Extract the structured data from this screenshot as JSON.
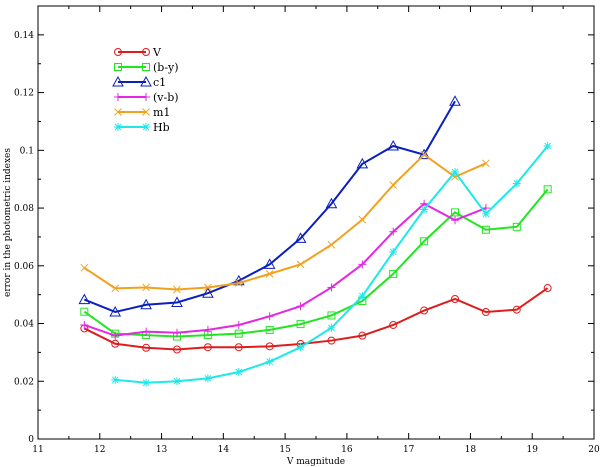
{
  "chart_data": {
    "type": "line",
    "xlabel": "V magnitude",
    "ylabel": "error in the photometric indexes",
    "xlim": [
      11,
      20
    ],
    "ylim": [
      0,
      0.15
    ],
    "xticks": [
      "11",
      "12",
      "13",
      "14",
      "15",
      "16",
      "17",
      "18",
      "19",
      "20"
    ],
    "yticks": [
      "0",
      "0.02",
      "0.04",
      "0.06",
      "0.08",
      "0.1",
      "0.12",
      "0.14"
    ],
    "grid": false,
    "legend_position": "top-left",
    "series": [
      {
        "name": "V",
        "color": "#dd1c1c",
        "marker": "circle",
        "x": [
          11.75,
          12.25,
          12.75,
          13.25,
          13.75,
          14.25,
          14.75,
          15.25,
          15.75,
          16.25,
          16.75,
          17.25,
          17.75,
          18.25,
          18.75,
          19.25
        ],
        "y": [
          0.0383,
          0.033,
          0.0316,
          0.031,
          0.0318,
          0.0318,
          0.0321,
          0.0329,
          0.0341,
          0.0358,
          0.0395,
          0.0445,
          0.0485,
          0.044,
          0.0448,
          0.0523
        ]
      },
      {
        "name": "(b-y)",
        "color": "#22e522",
        "marker": "square",
        "x": [
          11.75,
          12.25,
          12.75,
          13.25,
          13.75,
          14.25,
          14.75,
          15.25,
          15.75,
          16.25,
          16.75,
          17.25,
          17.75,
          18.25,
          18.75,
          19.25
        ],
        "y": [
          0.0441,
          0.0365,
          0.036,
          0.0355,
          0.036,
          0.0365,
          0.0378,
          0.0398,
          0.0428,
          0.0478,
          0.0572,
          0.0685,
          0.0785,
          0.0725,
          0.0735,
          0.0865
        ]
      },
      {
        "name": "c1",
        "color": "#0a1fbd",
        "marker": "triangle",
        "x": [
          11.75,
          12.25,
          12.75,
          13.25,
          13.75,
          14.25,
          14.75,
          15.25,
          15.75,
          16.25,
          16.75,
          17.25,
          17.75
        ],
        "y": [
          0.0483,
          0.044,
          0.0465,
          0.0473,
          0.0505,
          0.0548,
          0.0605,
          0.0695,
          0.0815,
          0.0953,
          0.1015,
          0.0985,
          0.117
        ]
      },
      {
        "name": "(v-b)",
        "color": "#e327e3",
        "marker": "plus",
        "x": [
          11.75,
          12.25,
          12.75,
          13.25,
          13.75,
          14.25,
          14.75,
          15.25,
          15.75,
          16.25,
          16.75,
          17.25,
          17.75,
          18.25
        ],
        "y": [
          0.0395,
          0.0358,
          0.0372,
          0.0368,
          0.0378,
          0.0395,
          0.0425,
          0.046,
          0.0525,
          0.0605,
          0.0718,
          0.0815,
          0.0758,
          0.08
        ]
      },
      {
        "name": "m1",
        "color": "#f2a11e",
        "marker": "x",
        "x": [
          11.75,
          12.25,
          12.75,
          13.25,
          13.75,
          14.25,
          14.75,
          15.25,
          15.75,
          16.25,
          16.75,
          17.25,
          17.75,
          18.25
        ],
        "y": [
          0.0593,
          0.0522,
          0.0525,
          0.0518,
          0.0525,
          0.054,
          0.0572,
          0.0605,
          0.0673,
          0.076,
          0.088,
          0.0985,
          0.0908,
          0.0955
        ]
      },
      {
        "name": "Hb",
        "color": "#1ee8e8",
        "marker": "star",
        "x": [
          12.25,
          12.75,
          13.25,
          13.75,
          14.25,
          14.75,
          15.25,
          15.75,
          16.25,
          16.75,
          17.25,
          17.75,
          18.25,
          18.75,
          19.25
        ],
        "y": [
          0.0205,
          0.0195,
          0.02,
          0.021,
          0.0232,
          0.0268,
          0.0318,
          0.0385,
          0.0495,
          0.0648,
          0.0795,
          0.0925,
          0.078,
          0.0885,
          0.1015
        ]
      }
    ]
  }
}
